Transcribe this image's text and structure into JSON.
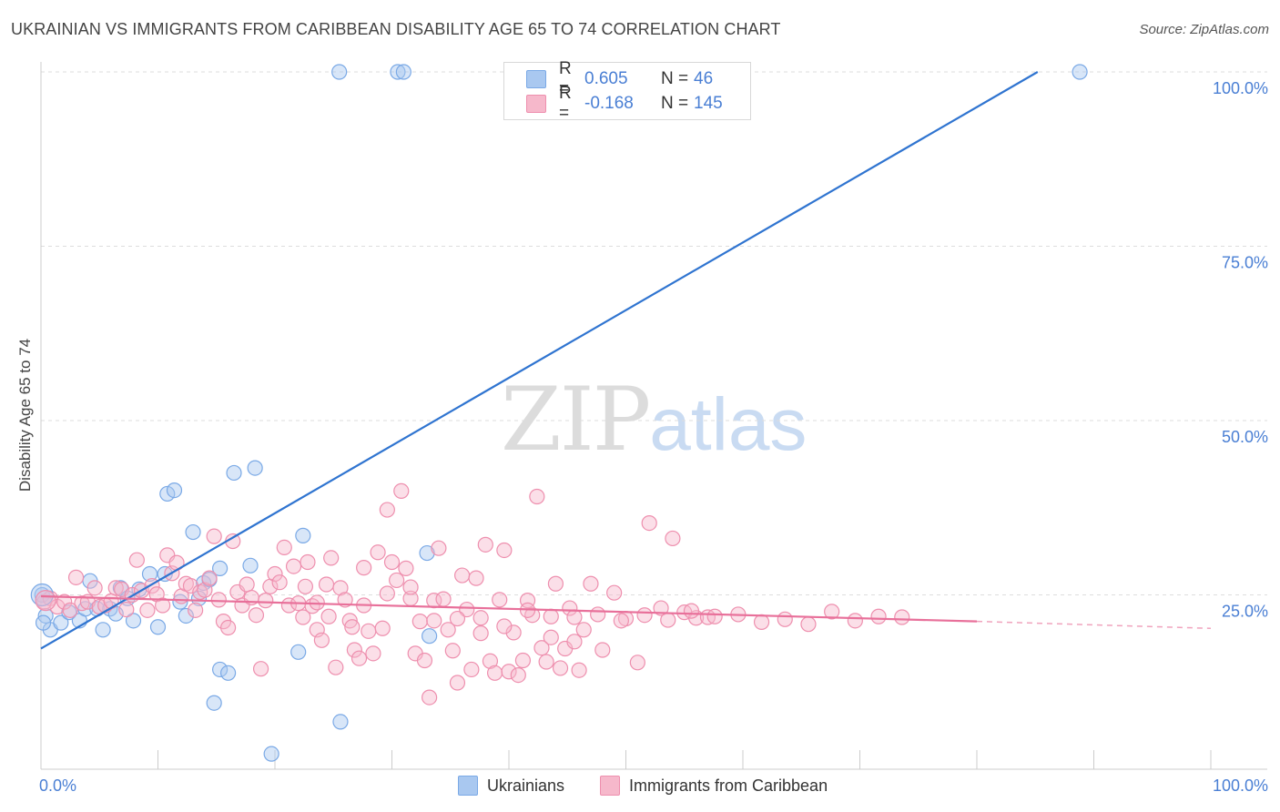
{
  "title": "UKRAINIAN VS IMMIGRANTS FROM CARIBBEAN DISABILITY AGE 65 TO 74 CORRELATION CHART",
  "source": "Source: ZipAtlas.com",
  "watermark": {
    "zip": "ZIP",
    "atlas": "atlas"
  },
  "legend_top": {
    "rows": [
      {
        "r_label": "R =",
        "r_value": "0.605",
        "n_label": "N =",
        "n_value": "46",
        "color": "#a9c8f0"
      },
      {
        "r_label": "R =",
        "r_value": "-0.168",
        "n_label": "N =",
        "n_value": "145",
        "color": "#f6b8cb"
      }
    ]
  },
  "legend_bottom": [
    {
      "label": "Ukrainians",
      "color": "#a9c8f0"
    },
    {
      "label": "Immigrants from Caribbean",
      "color": "#f6b8cb"
    }
  ],
  "chart_data": {
    "type": "scatter",
    "title": "UKRAINIAN VS IMMIGRANTS FROM CARIBBEAN DISABILITY AGE 65 TO 74 CORRELATION CHART",
    "xlabel": "",
    "ylabel": "Disability Age 65 to 74",
    "xlim": [
      0,
      100
    ],
    "ylim": [
      0,
      100
    ],
    "x_tick_labels": [
      "0.0%",
      "100.0%"
    ],
    "y_tick_labels": [
      "25.0%",
      "50.0%",
      "75.0%",
      "100.0%"
    ],
    "y_tick_values": [
      25,
      50,
      75,
      100
    ],
    "series": [
      {
        "name": "Ukrainians",
        "color": "#7aa9e6",
        "fill": "#a9c8f0",
        "trend": {
          "x0": 0,
          "y0": 17.3,
          "x1": 85.2,
          "y1": 100
        },
        "points": [
          [
            0.1,
            25
          ],
          [
            0.4,
            22
          ],
          [
            0.8,
            20
          ],
          [
            1.7,
            21
          ],
          [
            2.4,
            22.5
          ],
          [
            3.3,
            21.3
          ],
          [
            3.8,
            23
          ],
          [
            4.2,
            27
          ],
          [
            4.8,
            23
          ],
          [
            5.3,
            20
          ],
          [
            5.9,
            23
          ],
          [
            6.4,
            22.3
          ],
          [
            6.8,
            26
          ],
          [
            7.4,
            24.5
          ],
          [
            7.9,
            21.3
          ],
          [
            8.4,
            25.8
          ],
          [
            9.3,
            28
          ],
          [
            10,
            20.4
          ],
          [
            10.6,
            28
          ],
          [
            10.8,
            39.5
          ],
          [
            11.4,
            40
          ],
          [
            11.9,
            24
          ],
          [
            12.4,
            22
          ],
          [
            13,
            34
          ],
          [
            13.5,
            24.5
          ],
          [
            13.9,
            26.7
          ],
          [
            14.4,
            27.2
          ],
          [
            14.8,
            9.5
          ],
          [
            15.3,
            28.8
          ],
          [
            15.3,
            14.3
          ],
          [
            16,
            13.8
          ],
          [
            16.5,
            42.5
          ],
          [
            17.9,
            29.2
          ],
          [
            18.3,
            43.2
          ],
          [
            19.7,
            2.2
          ],
          [
            22,
            16.8
          ],
          [
            22.4,
            33.5
          ],
          [
            25.5,
            100
          ],
          [
            25.6,
            6.8
          ],
          [
            30.5,
            100
          ],
          [
            31,
            100
          ],
          [
            33,
            31
          ],
          [
            33.2,
            19.1
          ],
          [
            88.8,
            100
          ],
          [
            0.2,
            21
          ]
        ]
      },
      {
        "name": "Immigrants from Caribbean",
        "color": "#ee8fae",
        "fill": "#f6b8cb",
        "trend": {
          "x0": 0,
          "y0": 24.8,
          "x1": 80,
          "y1": 21.2
        },
        "trend_dashed": {
          "x0": 80,
          "y0": 21.2,
          "x1": 100,
          "y1": 20.2
        },
        "points": [
          [
            0.3,
            24
          ],
          [
            0.8,
            24.5
          ],
          [
            1.4,
            23.3
          ],
          [
            2,
            24
          ],
          [
            2.5,
            22.8
          ],
          [
            3,
            27.5
          ],
          [
            3.5,
            23.8
          ],
          [
            4,
            24
          ],
          [
            4.6,
            26
          ],
          [
            5,
            23.3
          ],
          [
            5.5,
            23.5
          ],
          [
            6,
            24.1
          ],
          [
            6.4,
            26
          ],
          [
            6.9,
            25.8
          ],
          [
            7.3,
            22.9
          ],
          [
            7.8,
            25
          ],
          [
            8.2,
            30
          ],
          [
            8.6,
            25.6
          ],
          [
            9.1,
            22.8
          ],
          [
            9.5,
            26.3
          ],
          [
            9.9,
            25.1
          ],
          [
            10.4,
            23.5
          ],
          [
            10.8,
            30.7
          ],
          [
            11.2,
            28.1
          ],
          [
            11.6,
            29.6
          ],
          [
            12,
            24.8
          ],
          [
            12.4,
            26.6
          ],
          [
            12.8,
            26.3
          ],
          [
            13.2,
            22.8
          ],
          [
            13.6,
            25.4
          ],
          [
            14,
            25.7
          ],
          [
            14.4,
            27.4
          ],
          [
            14.8,
            33.4
          ],
          [
            15.2,
            24.3
          ],
          [
            15.6,
            21.2
          ],
          [
            16,
            20.3
          ],
          [
            16.4,
            32.7
          ],
          [
            16.8,
            25.4
          ],
          [
            17.2,
            23.5
          ],
          [
            17.6,
            26.5
          ],
          [
            18,
            24.6
          ],
          [
            18.4,
            22.1
          ],
          [
            18.8,
            14.4
          ],
          [
            19.2,
            24.2
          ],
          [
            19.6,
            26.2
          ],
          [
            20,
            28
          ],
          [
            20.4,
            26.8
          ],
          [
            20.8,
            31.8
          ],
          [
            21.2,
            23.5
          ],
          [
            21.6,
            29.1
          ],
          [
            22,
            23.8
          ],
          [
            22.4,
            21.8
          ],
          [
            22.8,
            29.7
          ],
          [
            23.2,
            23.4
          ],
          [
            23.6,
            20
          ],
          [
            24,
            18.5
          ],
          [
            24.4,
            26.5
          ],
          [
            24.8,
            30.3
          ],
          [
            25.2,
            14.6
          ],
          [
            25.6,
            26
          ],
          [
            26,
            24.3
          ],
          [
            26.4,
            21.3
          ],
          [
            26.8,
            17.1
          ],
          [
            27.2,
            15.9
          ],
          [
            27.6,
            28.9
          ],
          [
            28,
            19.8
          ],
          [
            28.4,
            16.6
          ],
          [
            28.8,
            31.1
          ],
          [
            29.2,
            20.2
          ],
          [
            29.6,
            37.2
          ],
          [
            30,
            29.7
          ],
          [
            30.4,
            27.1
          ],
          [
            30.8,
            39.9
          ],
          [
            31.2,
            28.8
          ],
          [
            31.6,
            24.5
          ],
          [
            32,
            16.6
          ],
          [
            32.4,
            21.2
          ],
          [
            32.8,
            15.6
          ],
          [
            33.2,
            10.3
          ],
          [
            33.6,
            24.2
          ],
          [
            34,
            31.7
          ],
          [
            34.4,
            24.4
          ],
          [
            34.8,
            20
          ],
          [
            35.2,
            17
          ],
          [
            35.6,
            12.4
          ],
          [
            36,
            27.8
          ],
          [
            36.4,
            22.9
          ],
          [
            36.8,
            14.3
          ],
          [
            37.2,
            27.4
          ],
          [
            37.6,
            19.5
          ],
          [
            38,
            32.2
          ],
          [
            38.4,
            15.5
          ],
          [
            38.8,
            13.8
          ],
          [
            39.2,
            24.3
          ],
          [
            39.6,
            31.4
          ],
          [
            40,
            14
          ],
          [
            40.4,
            19.6
          ],
          [
            40.8,
            13.5
          ],
          [
            41.2,
            15.6
          ],
          [
            41.6,
            24.2
          ],
          [
            42,
            22.1
          ],
          [
            42.4,
            39.1
          ],
          [
            42.8,
            17.4
          ],
          [
            43.2,
            15.4
          ],
          [
            43.6,
            18.9
          ],
          [
            44,
            26.6
          ],
          [
            44.4,
            14.5
          ],
          [
            44.8,
            17.3
          ],
          [
            45.2,
            23.1
          ],
          [
            45.6,
            18.3
          ],
          [
            46,
            14.2
          ],
          [
            46.4,
            20
          ],
          [
            47,
            26.6
          ],
          [
            48,
            17.1
          ],
          [
            49,
            25.3
          ],
          [
            50,
            21.6
          ],
          [
            51,
            15.3
          ],
          [
            52,
            35.3
          ],
          [
            53,
            23.1
          ],
          [
            54,
            33.1
          ],
          [
            55,
            22.5
          ],
          [
            56,
            21.7
          ],
          [
            57,
            21.8
          ],
          [
            22.6,
            26.2
          ],
          [
            23.6,
            23.9
          ],
          [
            24.6,
            21.9
          ],
          [
            26.6,
            20.4
          ],
          [
            27.6,
            23.5
          ],
          [
            29.6,
            25.2
          ],
          [
            31.6,
            26.1
          ],
          [
            33.6,
            21.3
          ],
          [
            35.6,
            21.6
          ],
          [
            37.6,
            21.7
          ],
          [
            39.6,
            20.5
          ],
          [
            41.6,
            22.8
          ],
          [
            43.6,
            21.9
          ],
          [
            45.6,
            21.8
          ],
          [
            47.6,
            22.2
          ],
          [
            49.6,
            21.3
          ],
          [
            51.6,
            22.1
          ],
          [
            53.6,
            21.4
          ],
          [
            55.6,
            22.7
          ],
          [
            57.6,
            21.9
          ],
          [
            59.6,
            22.2
          ],
          [
            61.6,
            21.1
          ],
          [
            63.6,
            21.5
          ],
          [
            65.6,
            20.8
          ],
          [
            67.6,
            22.6
          ],
          [
            69.6,
            21.3
          ],
          [
            71.6,
            21.9
          ],
          [
            73.6,
            21.8
          ]
        ]
      }
    ]
  }
}
